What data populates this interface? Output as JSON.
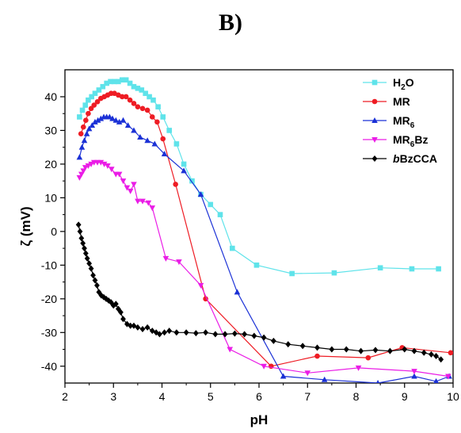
{
  "panel_label": "B)",
  "chart_data": {
    "type": "line",
    "title": "",
    "xlabel": "pH",
    "ylabel": "ζ (mV)",
    "xlim": [
      2,
      10
    ],
    "ylim": [
      -45,
      48
    ],
    "xticks": [
      2,
      3,
      4,
      5,
      6,
      7,
      8,
      9,
      10
    ],
    "yticks": [
      -40,
      -30,
      -20,
      -10,
      0,
      10,
      20,
      30,
      40
    ],
    "grid": false,
    "legend_position": "top-right",
    "series": [
      {
        "name": "H2O",
        "label_parts": [
          {
            "t": "H"
          },
          {
            "t": "2",
            "sub": true
          },
          {
            "t": "O"
          }
        ],
        "color": "#5fe3ea",
        "marker": "square",
        "x": [
          2.3,
          2.36,
          2.42,
          2.48,
          2.55,
          2.62,
          2.7,
          2.78,
          2.86,
          2.94,
          3.02,
          3.1,
          3.18,
          3.26,
          3.34,
          3.42,
          3.5,
          3.58,
          3.66,
          3.74,
          3.82,
          3.92,
          4.02,
          4.15,
          4.3,
          4.45,
          4.62,
          4.8,
          5.0,
          5.2,
          5.45,
          5.95,
          6.68,
          7.55,
          8.5,
          9.15,
          9.7
        ],
        "y": [
          34,
          36,
          37.5,
          39,
          40,
          41,
          42,
          43,
          44,
          44.5,
          44.5,
          44.5,
          45,
          45,
          44,
          43,
          42.5,
          42,
          41,
          40,
          39,
          37,
          34,
          30,
          26,
          20,
          15,
          11,
          8,
          5,
          -5,
          -10,
          -12.5,
          -12.3,
          -10.8,
          -11.1,
          -11.1
        ]
      },
      {
        "name": "MR",
        "color": "#ee1c24",
        "marker": "circle",
        "x": [
          2.33,
          2.38,
          2.43,
          2.48,
          2.54,
          2.6,
          2.67,
          2.74,
          2.81,
          2.88,
          2.95,
          3.02,
          3.1,
          3.18,
          3.26,
          3.34,
          3.42,
          3.5,
          3.6,
          3.7,
          3.8,
          3.9,
          4.02,
          4.28,
          4.9,
          6.25,
          7.2,
          8.25,
          8.95,
          9.95
        ],
        "y": [
          29,
          31,
          33,
          35,
          36.5,
          37.5,
          38.5,
          39.5,
          40,
          40.5,
          41,
          41,
          40.5,
          40,
          40,
          39,
          38,
          37,
          36.5,
          36,
          34,
          32.5,
          27.5,
          14,
          -20,
          -40,
          -37,
          -37.5,
          -34.5,
          -36
        ]
      },
      {
        "name": "MR6",
        "label_parts": [
          {
            "t": "MR"
          },
          {
            "t": "6",
            "sub": true
          }
        ],
        "color": "#1b31d6",
        "marker": "triangle-up",
        "x": [
          2.3,
          2.35,
          2.4,
          2.45,
          2.5,
          2.56,
          2.62,
          2.68,
          2.74,
          2.8,
          2.86,
          2.92,
          2.98,
          3.05,
          3.12,
          3.2,
          3.3,
          3.42,
          3.55,
          3.7,
          3.85,
          4.05,
          4.45,
          4.8,
          5.55,
          6.5,
          7.35,
          8.45,
          9.2,
          9.65,
          9.92
        ],
        "y": [
          22,
          25,
          27,
          29,
          30.5,
          31.5,
          32.5,
          33,
          33.5,
          34,
          34,
          34,
          33.5,
          33,
          32.5,
          33,
          31.5,
          30,
          28,
          27,
          26,
          23,
          18,
          11,
          -18,
          -43,
          -44,
          -45,
          -43,
          -44.5,
          -43
        ]
      },
      {
        "name": "MR6Bz",
        "label_parts": [
          {
            "t": "MR"
          },
          {
            "t": "6",
            "sub": true
          },
          {
            "t": "Bz"
          }
        ],
        "color": "#ea1de6",
        "marker": "triangle-down",
        "x": [
          2.3,
          2.34,
          2.38,
          2.42,
          2.48,
          2.54,
          2.6,
          2.67,
          2.74,
          2.81,
          2.88,
          2.96,
          3.05,
          3.12,
          3.2,
          3.28,
          3.35,
          3.42,
          3.5,
          3.6,
          3.72,
          3.8,
          4.08,
          4.35,
          4.8,
          5.4,
          6.1,
          7.0,
          8.05,
          9.2,
          9.9
        ],
        "y": [
          16,
          17,
          18,
          19,
          19.5,
          20,
          20.5,
          20.5,
          20.5,
          20,
          19.5,
          18.5,
          17,
          17,
          15,
          13,
          12,
          14,
          9,
          9,
          8.5,
          7,
          -8,
          -9,
          -16,
          -35,
          -40,
          -42,
          -40.5,
          -41.5,
          -43
        ]
      },
      {
        "name": "bBzCCA",
        "label_parts": [
          {
            "t": "b",
            "i": true
          },
          {
            "t": "BzCCA"
          }
        ],
        "color": "#000000",
        "marker": "diamond",
        "x": [
          2.28,
          2.31,
          2.34,
          2.37,
          2.4,
          2.43,
          2.46,
          2.5,
          2.54,
          2.58,
          2.62,
          2.66,
          2.7,
          2.75,
          2.8,
          2.85,
          2.9,
          2.95,
          3.0,
          3.05,
          3.1,
          3.15,
          3.2,
          3.28,
          3.35,
          3.42,
          3.5,
          3.6,
          3.7,
          3.8,
          3.88,
          3.95,
          4.05,
          4.15,
          4.3,
          4.5,
          4.7,
          4.9,
          5.1,
          5.3,
          5.5,
          5.7,
          5.9,
          6.1,
          6.3,
          6.6,
          6.9,
          7.2,
          7.5,
          7.8,
          8.1,
          8.4,
          8.7,
          9.0,
          9.2,
          9.4,
          9.55,
          9.65,
          9.75
        ],
        "y": [
          2,
          0,
          -2,
          -3.5,
          -5,
          -6.5,
          -8,
          -9.5,
          -11,
          -13,
          -14.5,
          -16,
          -18,
          -19,
          -19.5,
          -20,
          -20.5,
          -21,
          -22,
          -21.5,
          -23,
          -24,
          -26,
          -27.5,
          -28,
          -28,
          -28.5,
          -29,
          -28.5,
          -29.5,
          -30,
          -30.5,
          -30,
          -29.5,
          -30,
          -30,
          -30.2,
          -30,
          -30.5,
          -30.5,
          -30.3,
          -30.5,
          -31,
          -31.5,
          -32.5,
          -33.5,
          -34,
          -34.5,
          -35,
          -35,
          -35.5,
          -35.2,
          -35.5,
          -35,
          -35.5,
          -36,
          -36.5,
          -37,
          -38
        ]
      }
    ]
  }
}
